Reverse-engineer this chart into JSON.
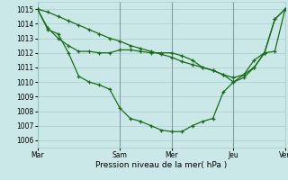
{
  "xlabel": "Pression niveau de la mer( hPa )",
  "background_color": "#cbe8e8",
  "grid_color": "#a8cccc",
  "line_color": "#1a6b1a",
  "ylim": [
    1005.5,
    1015.5
  ],
  "yticks": [
    1006,
    1007,
    1008,
    1009,
    1010,
    1011,
    1012,
    1013,
    1014,
    1015
  ],
  "xtick_labels": [
    "Mar",
    "Sam",
    "Mer",
    "Jeu",
    "Ven"
  ],
  "xtick_positions": [
    0,
    8,
    13,
    19,
    24
  ],
  "xlim": [
    0,
    24
  ],
  "line1_x": [
    0,
    1,
    2,
    3,
    4,
    5,
    6,
    7,
    8,
    9,
    10,
    11,
    12,
    13,
    14,
    15,
    16,
    17,
    18,
    19,
    20,
    21,
    22,
    23,
    24
  ],
  "line1_y": [
    1015.0,
    1013.6,
    1013.3,
    1012.0,
    1010.4,
    1010.0,
    1009.8,
    1009.5,
    1008.2,
    1007.5,
    1007.3,
    1007.0,
    1006.7,
    1006.6,
    1006.6,
    1007.0,
    1007.3,
    1007.5,
    1009.3,
    1010.0,
    1010.3,
    1011.0,
    1012.0,
    1012.1,
    1015.0
  ],
  "line2_x": [
    0,
    1,
    2,
    3,
    4,
    5,
    6,
    7,
    8,
    9,
    10,
    11,
    12,
    13,
    14,
    15,
    16,
    17,
    18,
    19,
    20,
    21,
    22,
    23,
    24
  ],
  "line2_y": [
    1015.0,
    1014.8,
    1014.5,
    1014.2,
    1013.9,
    1013.6,
    1013.3,
    1013.0,
    1012.8,
    1012.5,
    1012.3,
    1012.1,
    1011.9,
    1011.7,
    1011.4,
    1011.2,
    1011.0,
    1010.8,
    1010.5,
    1010.3,
    1010.5,
    1011.0,
    1012.0,
    1014.3,
    1015.0
  ],
  "line3_x": [
    0,
    1,
    2,
    3,
    4,
    5,
    6,
    7,
    8,
    9,
    10,
    11,
    12,
    13,
    14,
    15,
    16,
    17,
    18,
    19,
    20,
    21,
    22,
    23,
    24
  ],
  "line3_y": [
    1015.0,
    1013.7,
    1013.0,
    1012.5,
    1012.1,
    1012.1,
    1012.0,
    1012.0,
    1012.2,
    1012.2,
    1012.1,
    1012.0,
    1012.0,
    1012.0,
    1011.8,
    1011.5,
    1011.0,
    1010.8,
    1010.5,
    1010.0,
    1010.5,
    1011.5,
    1012.0,
    1014.3,
    1015.0
  ]
}
